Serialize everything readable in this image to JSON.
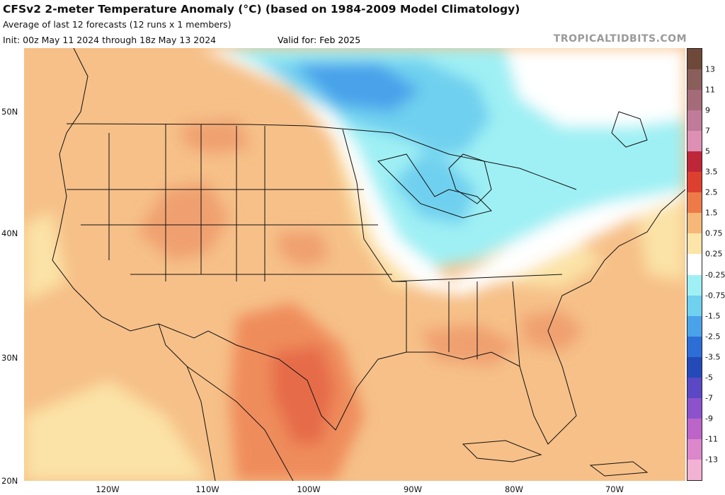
{
  "header": {
    "title": "CFSv2 2-meter Temperature Anomaly (°C) (based on 1984-2009 Model Climatology)",
    "subtitle": "Average of last 12 forecasts (12 runs x 1 members)",
    "init": "Init: 00z May 11 2024 through 18z May 13 2024",
    "valid": "Valid for: Feb 2025",
    "brand": "TROPICALTIDBITS.COM"
  },
  "map": {
    "lat_labels": [
      "50N",
      "40N",
      "30N",
      "20N"
    ],
    "lon_labels": [
      "120W",
      "110W",
      "100W",
      "90W",
      "80W",
      "70W"
    ]
  },
  "colorbar": {
    "labels": [
      "13",
      "11",
      "9",
      "7",
      "5",
      "3.5",
      "2.5",
      "1.5",
      "0.75",
      "0.25",
      "-0.25",
      "-0.75",
      "-1.5",
      "-2.5",
      "-3.5",
      "-5",
      "-7",
      "-9",
      "-11",
      "-13"
    ],
    "colors": [
      "#6e4838",
      "#8a5e5a",
      "#a56b79",
      "#c07a9a",
      "#dd8fb4",
      "#c0263a",
      "#de4030",
      "#ee7a48",
      "#f6b878",
      "#fde4a8",
      "#ffffff",
      "#9ff0f4",
      "#6fd0ef",
      "#4aa2ea",
      "#2c6ed6",
      "#234ab8",
      "#5a48c4",
      "#8c52cc",
      "#bc64c8",
      "#dc86cc",
      "#f2b2d4"
    ]
  }
}
